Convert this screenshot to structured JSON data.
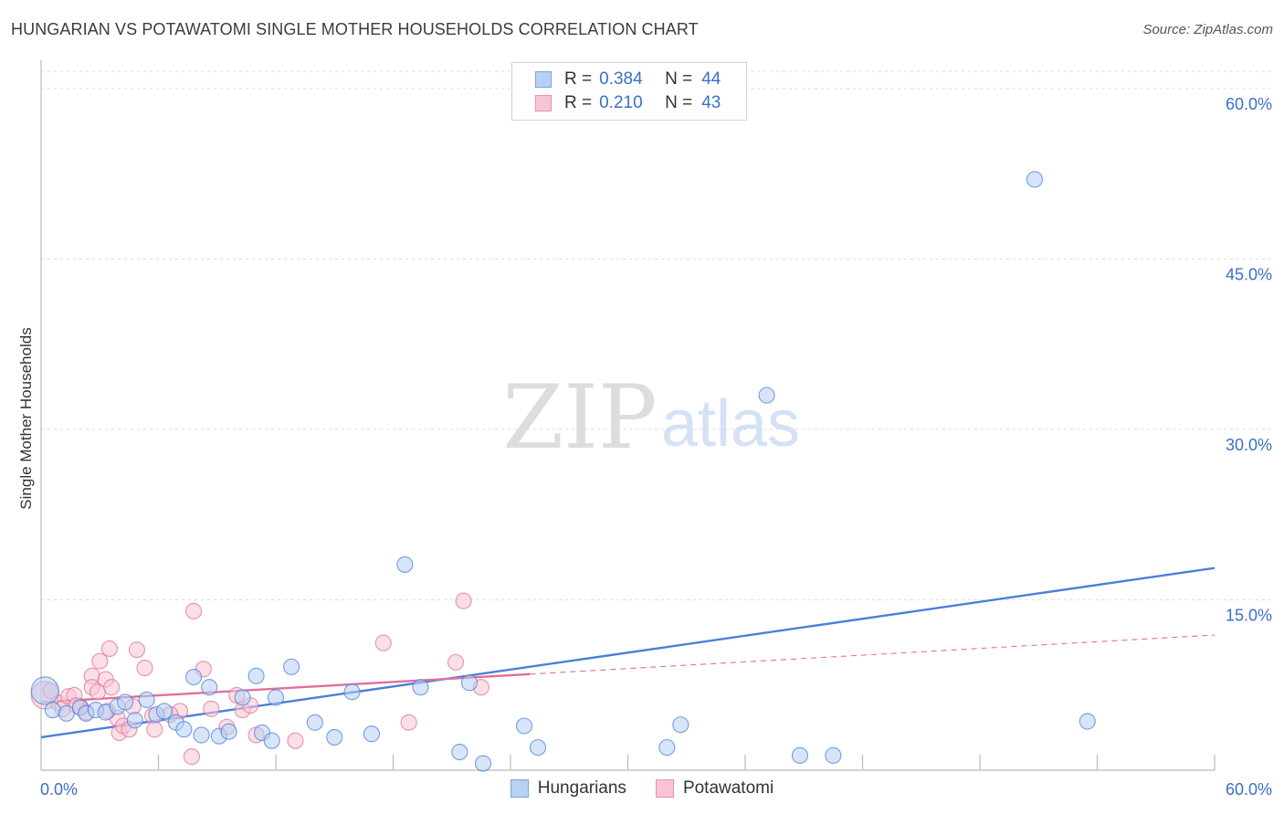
{
  "chart_data": {
    "type": "scatter",
    "title": "HUNGARIAN VS POTAWATOMI SINGLE MOTHER HOUSEHOLDS CORRELATION CHART",
    "source": "Source: ZipAtlas.com",
    "xlabel": "",
    "ylabel": "Single Mother Households",
    "xlim": [
      0,
      60
    ],
    "ylim": [
      0,
      62
    ],
    "x_tick_labels": [
      "0.0%",
      "60.0%"
    ],
    "y_tick_labels": [
      "15.0%",
      "30.0%",
      "45.0%",
      "60.0%"
    ],
    "y_ticks": [
      15,
      30,
      45,
      60
    ],
    "x_minor_ticks": [
      6,
      12,
      18,
      24,
      30,
      36,
      42,
      48,
      54,
      60
    ],
    "grid": true,
    "watermark": {
      "part1": "ZIP",
      "part2": "atlas"
    },
    "stats": [
      {
        "label": "R =",
        "r": "0.384",
        "n_label": "N =",
        "n": "44"
      },
      {
        "label": "R =",
        "r": "0.210",
        "n_label": "N =",
        "n": "43"
      }
    ],
    "series": [
      {
        "name": "Hungarians",
        "color": "#4a80d8",
        "fill": "#b8d0f4",
        "trend": {
          "x": [
            0,
            60
          ],
          "y": [
            2.9,
            17.8
          ],
          "dashed_from": null
        },
        "points": [
          {
            "x": 0.2,
            "y": 7.0,
            "big": true
          },
          {
            "x": 0.6,
            "y": 5.3
          },
          {
            "x": 1.3,
            "y": 5.0
          },
          {
            "x": 2.0,
            "y": 5.5
          },
          {
            "x": 2.3,
            "y": 5.0
          },
          {
            "x": 2.8,
            "y": 5.3
          },
          {
            "x": 3.3,
            "y": 5.1
          },
          {
            "x": 3.9,
            "y": 5.6
          },
          {
            "x": 4.3,
            "y": 6.0
          },
          {
            "x": 4.8,
            "y": 4.4
          },
          {
            "x": 5.4,
            "y": 6.2
          },
          {
            "x": 5.9,
            "y": 4.9
          },
          {
            "x": 6.3,
            "y": 5.2
          },
          {
            "x": 6.9,
            "y": 4.2
          },
          {
            "x": 7.3,
            "y": 3.6
          },
          {
            "x": 7.8,
            "y": 8.2
          },
          {
            "x": 8.2,
            "y": 3.1
          },
          {
            "x": 8.6,
            "y": 7.3
          },
          {
            "x": 9.1,
            "y": 3.0
          },
          {
            "x": 9.6,
            "y": 3.4
          },
          {
            "x": 10.3,
            "y": 6.4
          },
          {
            "x": 11.0,
            "y": 8.3
          },
          {
            "x": 11.3,
            "y": 3.3
          },
          {
            "x": 11.8,
            "y": 2.6
          },
          {
            "x": 12.0,
            "y": 6.4
          },
          {
            "x": 12.8,
            "y": 9.1
          },
          {
            "x": 14.0,
            "y": 4.2
          },
          {
            "x": 15.0,
            "y": 2.9
          },
          {
            "x": 15.9,
            "y": 6.9
          },
          {
            "x": 16.9,
            "y": 3.2
          },
          {
            "x": 18.6,
            "y": 18.1
          },
          {
            "x": 19.4,
            "y": 7.3
          },
          {
            "x": 21.4,
            "y": 1.6
          },
          {
            "x": 21.9,
            "y": 7.7
          },
          {
            "x": 22.6,
            "y": 0.6
          },
          {
            "x": 24.7,
            "y": 3.9
          },
          {
            "x": 25.4,
            "y": 2.0
          },
          {
            "x": 32.0,
            "y": 2.0
          },
          {
            "x": 32.7,
            "y": 4.0
          },
          {
            "x": 37.1,
            "y": 33.0
          },
          {
            "x": 38.8,
            "y": 1.3
          },
          {
            "x": 40.5,
            "y": 1.3
          },
          {
            "x": 50.8,
            "y": 52.0
          },
          {
            "x": 53.5,
            "y": 4.3
          }
        ]
      },
      {
        "name": "Potawatomi",
        "color": "#e07098",
        "fill": "#f8c4d4",
        "trend": {
          "x": [
            0,
            60
          ],
          "y": [
            6.0,
            11.9
          ],
          "dashed_from": 25.0
        },
        "points": [
          {
            "x": 0.2,
            "y": 6.6,
            "big": true
          },
          {
            "x": 0.5,
            "y": 7.0
          },
          {
            "x": 0.9,
            "y": 5.9
          },
          {
            "x": 1.1,
            "y": 5.4
          },
          {
            "x": 1.4,
            "y": 6.5
          },
          {
            "x": 1.7,
            "y": 6.6
          },
          {
            "x": 2.0,
            "y": 5.6
          },
          {
            "x": 2.3,
            "y": 5.1
          },
          {
            "x": 2.6,
            "y": 8.3
          },
          {
            "x": 2.6,
            "y": 7.3
          },
          {
            "x": 2.9,
            "y": 6.9
          },
          {
            "x": 3.0,
            "y": 9.6
          },
          {
            "x": 3.3,
            "y": 8.0
          },
          {
            "x": 3.5,
            "y": 10.7
          },
          {
            "x": 3.6,
            "y": 7.3
          },
          {
            "x": 3.9,
            "y": 4.6
          },
          {
            "x": 4.0,
            "y": 3.3
          },
          {
            "x": 4.2,
            "y": 3.9
          },
          {
            "x": 4.5,
            "y": 3.6
          },
          {
            "x": 4.7,
            "y": 5.6
          },
          {
            "x": 4.9,
            "y": 10.6
          },
          {
            "x": 5.3,
            "y": 9.0
          },
          {
            "x": 5.7,
            "y": 4.8
          },
          {
            "x": 5.8,
            "y": 3.6
          },
          {
            "x": 7.1,
            "y": 5.2
          },
          {
            "x": 7.7,
            "y": 1.2
          },
          {
            "x": 7.8,
            "y": 14.0
          },
          {
            "x": 8.3,
            "y": 8.9
          },
          {
            "x": 8.7,
            "y": 5.4
          },
          {
            "x": 9.5,
            "y": 3.8
          },
          {
            "x": 10.0,
            "y": 6.6
          },
          {
            "x": 10.3,
            "y": 5.3
          },
          {
            "x": 10.7,
            "y": 5.7
          },
          {
            "x": 11.0,
            "y": 3.1
          },
          {
            "x": 13.0,
            "y": 2.6
          },
          {
            "x": 17.5,
            "y": 11.2
          },
          {
            "x": 18.8,
            "y": 4.2
          },
          {
            "x": 21.2,
            "y": 9.5
          },
          {
            "x": 21.6,
            "y": 14.9
          },
          {
            "x": 22.5,
            "y": 7.3
          },
          {
            "x": 3.4,
            "y": 5.2
          },
          {
            "x": 6.6,
            "y": 4.9
          },
          {
            "x": 1.8,
            "y": 5.7
          }
        ]
      }
    ]
  }
}
